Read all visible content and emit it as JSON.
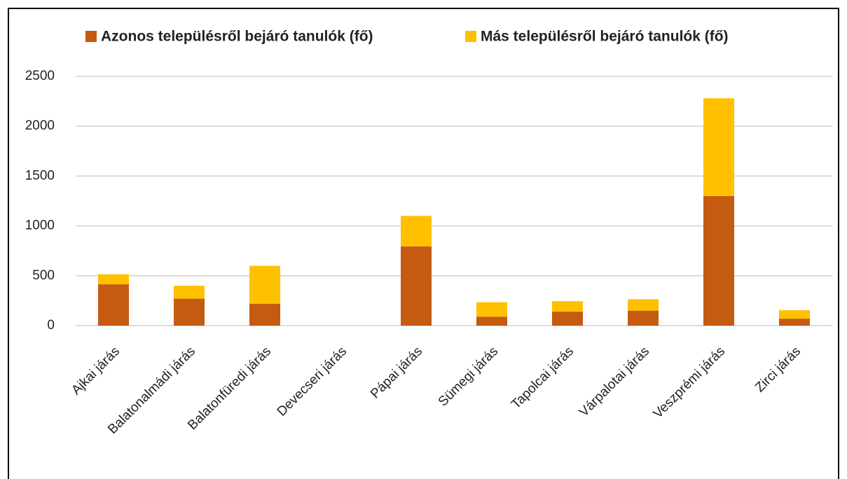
{
  "chart_data": {
    "type": "stacked_bar",
    "categories": [
      "Ajkai járás",
      "Balatonalmádi járás",
      "Balatonfüredi járás",
      "Devecseri járás",
      "Pápai járás",
      "Sümegi járás",
      "Tapolcai járás",
      "Várpalotai járás",
      "Veszprémi járás",
      "Zirci járás"
    ],
    "series": [
      {
        "name": "Azonos településről bejáró tanulók (fő)",
        "color": "#c55a11",
        "values": [
          415,
          270,
          220,
          0,
          795,
          90,
          140,
          150,
          1300,
          70
        ]
      },
      {
        "name": "Más településről bejáró tanulók (fő)",
        "color": "#ffc000",
        "values": [
          100,
          130,
          380,
          0,
          305,
          145,
          105,
          115,
          980,
          85
        ]
      }
    ],
    "ylim": [
      0,
      2500
    ],
    "yticks": [
      0,
      500,
      1000,
      1500,
      2000,
      2500
    ],
    "grid": true,
    "legend": "top"
  }
}
